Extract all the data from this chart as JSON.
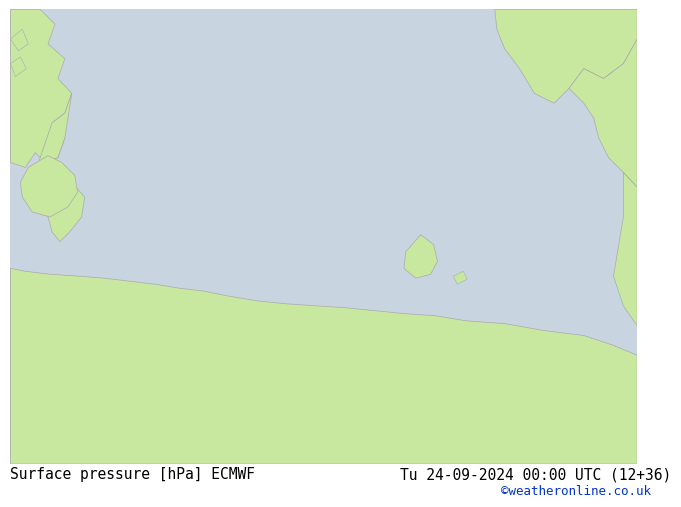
{
  "title_left": "Surface pressure [hPa] ECMWF",
  "title_right": "Tu 24-09-2024 00:00 UTC (12+36)",
  "credit": "©weatheronline.co.uk",
  "sea_color": "#c8d4e0",
  "land_color": "#c8e8a0",
  "coast_color": "#aaaaaa",
  "isobar_color": "#0033cc",
  "isobar_lw": 1.3,
  "label_fontsize": 8.5,
  "bottom_bar_color": "#ffffff",
  "title_fontsize": 10.5,
  "credit_fontsize": 9,
  "credit_color": "#0033cc",
  "title_color": "#000000"
}
